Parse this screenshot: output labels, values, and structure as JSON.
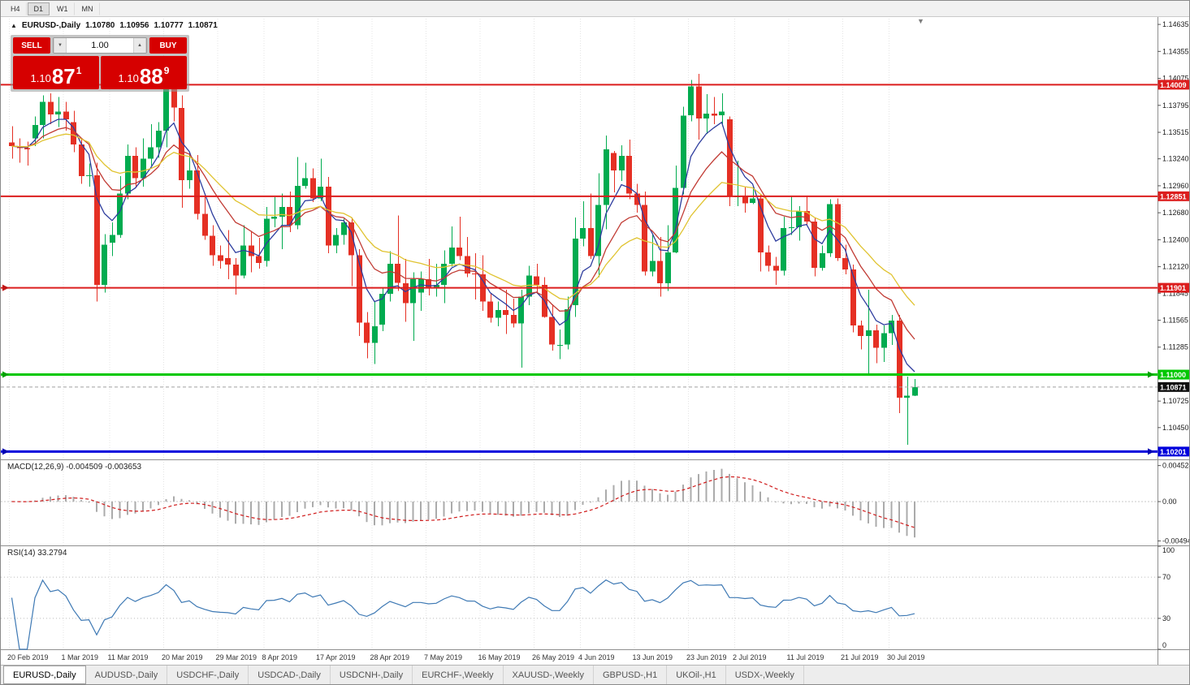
{
  "toolbar": {
    "timeframes": [
      {
        "label": "H4",
        "active": false
      },
      {
        "label": "D1",
        "active": true
      },
      {
        "label": "W1",
        "active": false
      },
      {
        "label": "MN",
        "active": false
      }
    ]
  },
  "chart_header": {
    "collapse_icon": "▲",
    "symbol": "EURUSD-,Daily",
    "open": "1.10780",
    "high": "1.10956",
    "low": "1.10777",
    "close": "1.10871"
  },
  "trade_panel": {
    "sell_label": "SELL",
    "buy_label": "BUY",
    "volume": "1.00",
    "spin_down_icon": "▼",
    "spin_up_icon": "▲",
    "sell_price": {
      "prefix": "1.10",
      "main": "87",
      "sup": "1"
    },
    "buy_price": {
      "prefix": "1.10",
      "main": "88",
      "sup": "9"
    },
    "button_color": "#d60000"
  },
  "scroll_marker_icon": "▼",
  "chart_data": {
    "type": "candlestick",
    "symbol": "EURUSD-",
    "timeframe": "Daily",
    "colors": {
      "bull": "#00ab4f",
      "bear": "#e53024",
      "grid": "#e4e4e4",
      "separator": "#8f8f8f",
      "current_line": "#a0a0a0",
      "current_label_bg": "#101010"
    },
    "price_axis_ticks": [
      "1.14635",
      "1.14355",
      "1.14075",
      "1.13795",
      "1.13515",
      "1.13240",
      "1.12960",
      "1.12680",
      "1.12400",
      "1.12120",
      "1.11845",
      "1.11565",
      "1.11285",
      "1.10725",
      "1.10450"
    ],
    "current_price": {
      "value": 1.10871,
      "label": "1.10871"
    },
    "levels": [
      {
        "price": 1.14009,
        "label": "1.14009",
        "color": "#dc1e1e",
        "width": 2,
        "arrows": []
      },
      {
        "price": 1.12851,
        "label": "1.12851",
        "color": "#dc1e1e",
        "width": 2,
        "arrows": []
      },
      {
        "price": 1.11901,
        "label": "1.11901",
        "color": "#dc1e1e",
        "width": 2,
        "arrows": [
          "left"
        ],
        "arrow_color": "#c01515"
      },
      {
        "price": 1.11,
        "label": "1.11000",
        "color": "#00c800",
        "width": 3,
        "arrows": [
          "left",
          "right"
        ],
        "arrow_color": "#00a000"
      },
      {
        "price": 1.10201,
        "label": "1.10201",
        "color": "#0000dc",
        "width": 3,
        "arrows": [
          "left",
          "right"
        ],
        "arrow_color": "#0000b4"
      }
    ],
    "overlays": [
      {
        "name": "fast-blue",
        "type": "ema",
        "period": 5,
        "color": "#2e3d9e"
      },
      {
        "name": "mid-red",
        "type": "ema",
        "period": 11,
        "color": "#c13b34"
      },
      {
        "name": "slow-yellow",
        "type": "ema",
        "period": 20,
        "color": "#e0c330"
      }
    ],
    "time_axis": [
      {
        "label": "20 Feb 2019",
        "idx": 0
      },
      {
        "label": "1 Mar 2019",
        "idx": 7
      },
      {
        "label": "11 Mar 2019",
        "idx": 13
      },
      {
        "label": "20 Mar 2019",
        "idx": 20
      },
      {
        "label": "29 Mar 2019",
        "idx": 27
      },
      {
        "label": "8 Apr 2019",
        "idx": 33
      },
      {
        "label": "17 Apr 2019",
        "idx": 40
      },
      {
        "label": "28 Apr 2019",
        "idx": 47
      },
      {
        "label": "7 May 2019",
        "idx": 54
      },
      {
        "label": "16 May 2019",
        "idx": 61
      },
      {
        "label": "26 May 2019",
        "idx": 68
      },
      {
        "label": "4 Jun 2019",
        "idx": 74
      },
      {
        "label": "13 Jun 2019",
        "idx": 81
      },
      {
        "label": "23 Jun 2019",
        "idx": 88
      },
      {
        "label": "2 Jul 2019",
        "idx": 94
      },
      {
        "label": "11 Jul 2019",
        "idx": 101
      },
      {
        "label": "21 Jul 2019",
        "idx": 108
      },
      {
        "label": "30 Jul 2019",
        "idx": 114
      }
    ],
    "macd": {
      "label": "MACD(12,26,9) -0.004509 -0.003653",
      "fast": 12,
      "slow": 26,
      "signal": 9,
      "histogram_color": "#ababab",
      "signal_color": "#d01c1c",
      "axis_ticks": [
        {
          "label": "0.004524",
          "value": 0.004524
        },
        {
          "label": "0.00",
          "value": 0
        },
        {
          "label": "-0.00494",
          "value": -0.00494
        }
      ]
    },
    "rsi": {
      "label": "RSI(14) 33.2794",
      "period": 14,
      "line_color": "#3e79b4",
      "levels": [
        70,
        30
      ],
      "axis_ticks": [
        {
          "label": "100",
          "value": 100
        },
        {
          "label": "70",
          "value": 70
        },
        {
          "label": "30",
          "value": 30
        },
        {
          "label": "0",
          "value": 0
        }
      ]
    },
    "candles": [
      [
        1.1341,
        1.1358,
        1.1324,
        1.1337
      ],
      [
        1.1337,
        1.1345,
        1.132,
        1.1335
      ],
      [
        1.1335,
        1.1342,
        1.1317,
        1.1334
      ],
      [
        1.1345,
        1.1368,
        1.1337,
        1.1359
      ],
      [
        1.1359,
        1.139,
        1.1345,
        1.1383
      ],
      [
        1.1383,
        1.1392,
        1.136,
        1.137
      ],
      [
        1.137,
        1.1388,
        1.1357,
        1.1373
      ],
      [
        1.1373,
        1.1383,
        1.1353,
        1.1365
      ],
      [
        1.1362,
        1.1374,
        1.1331,
        1.1339
      ],
      [
        1.1339,
        1.1344,
        1.1298,
        1.1306
      ],
      [
        1.1306,
        1.1319,
        1.1295,
        1.1307
      ],
      [
        1.1307,
        1.132,
        1.1176,
        1.1193
      ],
      [
        1.1193,
        1.1246,
        1.1185,
        1.1235
      ],
      [
        1.1237,
        1.1258,
        1.1223,
        1.1245
      ],
      [
        1.1245,
        1.1306,
        1.1242,
        1.1288
      ],
      [
        1.1288,
        1.1339,
        1.1282,
        1.1327
      ],
      [
        1.1327,
        1.1336,
        1.1294,
        1.1304
      ],
      [
        1.1304,
        1.1345,
        1.1295,
        1.1324
      ],
      [
        1.1324,
        1.136,
        1.1317,
        1.1336
      ],
      [
        1.1336,
        1.1362,
        1.1325,
        1.1353
      ],
      [
        1.1353,
        1.141,
        1.1336,
        1.1405
      ],
      [
        1.1405,
        1.1412,
        1.1363,
        1.1377
      ],
      [
        1.1377,
        1.139,
        1.1273,
        1.1302
      ],
      [
        1.1302,
        1.133,
        1.1293,
        1.1312
      ],
      [
        1.1312,
        1.1328,
        1.1261,
        1.1267
      ],
      [
        1.1267,
        1.1288,
        1.124,
        1.1244
      ],
      [
        1.1244,
        1.1255,
        1.1213,
        1.1224
      ],
      [
        1.1224,
        1.1234,
        1.121,
        1.1218
      ],
      [
        1.1221,
        1.125,
        1.1199,
        1.1214
      ],
      [
        1.1214,
        1.1221,
        1.1183,
        1.1203
      ],
      [
        1.1203,
        1.1255,
        1.12,
        1.1234
      ],
      [
        1.1234,
        1.1249,
        1.1206,
        1.1223
      ],
      [
        1.1223,
        1.1242,
        1.121,
        1.1216
      ],
      [
        1.1218,
        1.1274,
        1.1212,
        1.1262
      ],
      [
        1.1262,
        1.1284,
        1.1253,
        1.1264
      ],
      [
        1.1264,
        1.1288,
        1.123,
        1.1274
      ],
      [
        1.1274,
        1.129,
        1.1248,
        1.1255
      ],
      [
        1.1255,
        1.1326,
        1.1251,
        1.1296
      ],
      [
        1.1296,
        1.132,
        1.1293,
        1.1304
      ],
      [
        1.1304,
        1.1314,
        1.1279,
        1.1283
      ],
      [
        1.1283,
        1.1324,
        1.128,
        1.1295
      ],
      [
        1.1295,
        1.1305,
        1.1226,
        1.1234
      ],
      [
        1.1234,
        1.1252,
        1.1226,
        1.1245
      ],
      [
        1.1245,
        1.1262,
        1.1235,
        1.1258
      ],
      [
        1.1258,
        1.1263,
        1.1192,
        1.1224
      ],
      [
        1.1224,
        1.123,
        1.114,
        1.1154
      ],
      [
        1.1154,
        1.1165,
        1.1117,
        1.1133
      ],
      [
        1.1133,
        1.1176,
        1.1111,
        1.115
      ],
      [
        1.1152,
        1.119,
        1.1145,
        1.1184
      ],
      [
        1.1184,
        1.1228,
        1.1176,
        1.1215
      ],
      [
        1.1215,
        1.1265,
        1.1187,
        1.1195
      ],
      [
        1.1195,
        1.122,
        1.1155,
        1.1174
      ],
      [
        1.1174,
        1.1206,
        1.1135,
        1.1199
      ],
      [
        1.1185,
        1.1207,
        1.1166,
        1.1199
      ],
      [
        1.1199,
        1.122,
        1.1182,
        1.119
      ],
      [
        1.119,
        1.1215,
        1.1181,
        1.1193
      ],
      [
        1.1193,
        1.1229,
        1.1174,
        1.1215
      ],
      [
        1.1215,
        1.1254,
        1.1212,
        1.1232
      ],
      [
        1.1232,
        1.1264,
        1.1219,
        1.1223
      ],
      [
        1.1223,
        1.1243,
        1.1201,
        1.1205
      ],
      [
        1.1205,
        1.1226,
        1.1178,
        1.1204
      ],
      [
        1.1204,
        1.1224,
        1.1166,
        1.1176
      ],
      [
        1.1176,
        1.1184,
        1.1154,
        1.1159
      ],
      [
        1.1159,
        1.1176,
        1.115,
        1.1167
      ],
      [
        1.1167,
        1.1188,
        1.1142,
        1.1162
      ],
      [
        1.1162,
        1.1179,
        1.1149,
        1.1153
      ],
      [
        1.1153,
        1.1188,
        1.1107,
        1.1181
      ],
      [
        1.1181,
        1.1213,
        1.1172,
        1.1203
      ],
      [
        1.1202,
        1.1215,
        1.1184,
        1.1193
      ],
      [
        1.1193,
        1.1201,
        1.1159,
        1.116
      ],
      [
        1.116,
        1.1173,
        1.1125,
        1.1131
      ],
      [
        1.1131,
        1.1147,
        1.1116,
        1.1131
      ],
      [
        1.1131,
        1.1181,
        1.1126,
        1.1168
      ],
      [
        1.1172,
        1.1263,
        1.116,
        1.1241
      ],
      [
        1.1241,
        1.128,
        1.1233,
        1.1252
      ],
      [
        1.1252,
        1.1288,
        1.122,
        1.1223
      ],
      [
        1.1223,
        1.1309,
        1.1201,
        1.1276
      ],
      [
        1.1276,
        1.1348,
        1.1251,
        1.1334
      ],
      [
        1.133,
        1.1332,
        1.1289,
        1.1312
      ],
      [
        1.1312,
        1.1338,
        1.1301,
        1.1327
      ],
      [
        1.1327,
        1.1344,
        1.1282,
        1.1288
      ],
      [
        1.1288,
        1.1298,
        1.1268,
        1.1276
      ],
      [
        1.1276,
        1.129,
        1.1203,
        1.1207
      ],
      [
        1.1207,
        1.1246,
        1.1202,
        1.1218
      ],
      [
        1.1218,
        1.1243,
        1.1181,
        1.1195
      ],
      [
        1.1195,
        1.1255,
        1.1187,
        1.1227
      ],
      [
        1.1227,
        1.1317,
        1.1226,
        1.1294
      ],
      [
        1.1294,
        1.1378,
        1.1287,
        1.1369
      ],
      [
        1.1369,
        1.1406,
        1.1363,
        1.1399
      ],
      [
        1.1399,
        1.1412,
        1.1344,
        1.1366
      ],
      [
        1.1366,
        1.1391,
        1.135,
        1.1371
      ],
      [
        1.1371,
        1.1388,
        1.136,
        1.1369
      ],
      [
        1.1369,
        1.1392,
        1.1358,
        1.1373
      ],
      [
        1.1365,
        1.1368,
        1.1275,
        1.1285
      ],
      [
        1.1285,
        1.1322,
        1.1275,
        1.1285
      ],
      [
        1.1285,
        1.1295,
        1.1268,
        1.1278
      ],
      [
        1.1278,
        1.1295,
        1.1277,
        1.1283
      ],
      [
        1.1283,
        1.1287,
        1.1207,
        1.1227
      ],
      [
        1.1227,
        1.1234,
        1.1207,
        1.1213
      ],
      [
        1.1213,
        1.1222,
        1.1193,
        1.1208
      ],
      [
        1.1208,
        1.1264,
        1.1203,
        1.1252
      ],
      [
        1.1252,
        1.1286,
        1.1245,
        1.1253
      ],
      [
        1.1253,
        1.1275,
        1.1239,
        1.127
      ],
      [
        1.127,
        1.1285,
        1.1255,
        1.1259
      ],
      [
        1.1259,
        1.1263,
        1.1202,
        1.1211
      ],
      [
        1.1211,
        1.1234,
        1.1208,
        1.1226
      ],
      [
        1.1226,
        1.1282,
        1.1222,
        1.1277
      ],
      [
        1.1277,
        1.1283,
        1.1218,
        1.1221
      ],
      [
        1.1221,
        1.1235,
        1.1204,
        1.1209
      ],
      [
        1.1209,
        1.1214,
        1.1144,
        1.1151
      ],
      [
        1.1151,
        1.1156,
        1.1126,
        1.114
      ],
      [
        1.114,
        1.1188,
        1.1101,
        1.1146
      ],
      [
        1.1146,
        1.1152,
        1.1112,
        1.1128
      ],
      [
        1.1128,
        1.1151,
        1.1113,
        1.1143
      ],
      [
        1.1143,
        1.1162,
        1.1131,
        1.1156
      ],
      [
        1.1156,
        1.1162,
        1.106,
        1.1076
      ],
      [
        1.1076,
        1.1098,
        1.1027,
        1.1078
      ],
      [
        1.1078,
        1.10956,
        1.10777,
        1.10871
      ]
    ]
  },
  "tabs": [
    {
      "label": "EURUSD-,Daily",
      "active": true
    },
    {
      "label": "AUDUSD-,Daily",
      "active": false
    },
    {
      "label": "USDCHF-,Daily",
      "active": false
    },
    {
      "label": "USDCAD-,Daily",
      "active": false
    },
    {
      "label": "USDCNH-,Daily",
      "active": false
    },
    {
      "label": "EURCHF-,Weekly",
      "active": false
    },
    {
      "label": "XAUUSD-,Weekly",
      "active": false
    },
    {
      "label": "GBPUSD-,H1",
      "active": false
    },
    {
      "label": "UKOil-,H1",
      "active": false
    },
    {
      "label": "USDX-,Weekly",
      "active": false
    }
  ]
}
